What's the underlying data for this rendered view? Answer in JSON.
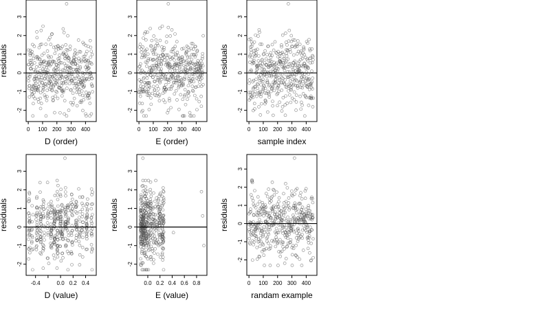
{
  "chart_data": [
    {
      "type": "scatter",
      "xlabel": "D (order)",
      "ylabel": "residuals",
      "xlim": [
        -15,
        475
      ],
      "ylim": [
        -2.6,
        3.9
      ],
      "xticks": [
        0,
        100,
        200,
        300,
        400
      ],
      "yticks": [
        -2,
        -1,
        0,
        1,
        2,
        3
      ],
      "hline": 0,
      "gen": {
        "kind": "index",
        "n": 450,
        "seed": 11,
        "outlier": [
          268,
          3.7
        ]
      },
      "points": []
    },
    {
      "type": "scatter",
      "xlabel": "E (order)",
      "ylabel": "residuals",
      "xlim": [
        -15,
        475
      ],
      "ylim": [
        -2.6,
        3.9
      ],
      "xticks": [
        0,
        100,
        200,
        300,
        400
      ],
      "yticks": [
        -2,
        -1,
        0,
        1,
        2,
        3
      ],
      "hline": 0,
      "gen": {
        "kind": "index",
        "n": 450,
        "seed": 23,
        "outlier": [
          205,
          3.7
        ]
      },
      "points": []
    },
    {
      "type": "scatter",
      "xlabel": "sample index",
      "ylabel": "residuals",
      "xlim": [
        -15,
        475
      ],
      "ylim": [
        -2.6,
        3.9
      ],
      "xticks": [
        0,
        100,
        200,
        300,
        400
      ],
      "yticks": [
        -2,
        -1,
        0,
        1,
        2,
        3
      ],
      "hline": 0,
      "gen": {
        "kind": "index",
        "n": 450,
        "seed": 37,
        "outlier": [
          275,
          3.7
        ]
      },
      "points": []
    },
    {
      "type": "scatter",
      "xlabel": "D (value)",
      "ylabel": "residuals",
      "xlim": [
        -0.55,
        0.57
      ],
      "ylim": [
        -2.6,
        3.9
      ],
      "xticks": [
        -0.4,
        -0.2,
        0.0,
        0.2,
        0.4
      ],
      "xticklabels": [
        "-0.4",
        "",
        "0.0",
        "0.2",
        "0.4"
      ],
      "yticks": [
        -2,
        -1,
        0,
        1,
        2,
        3
      ],
      "hline": 0,
      "gen": {
        "kind": "columns",
        "columns": [
          -0.5,
          -0.45,
          -0.38,
          -0.32,
          -0.27,
          -0.2,
          -0.15,
          -0.1,
          -0.05,
          0.0,
          0.03,
          0.08,
          0.12,
          0.18,
          0.25,
          0.3,
          0.35,
          0.42,
          0.5
        ],
        "jitter": 0.012,
        "n": 450,
        "seed": 51,
        "outlier": [
          0.07,
          3.7
        ]
      },
      "points": []
    },
    {
      "type": "scatter",
      "xlabel": "E (value)",
      "ylabel": "residuals",
      "xlim": [
        -0.18,
        0.97
      ],
      "ylim": [
        -2.6,
        3.9
      ],
      "xticks": [
        0.0,
        0.2,
        0.4,
        0.6,
        0.8
      ],
      "xticklabels": [
        "0.0",
        "0.2",
        "0.4",
        "0.6",
        "0.8"
      ],
      "yticks": [
        -2,
        -1,
        0,
        1,
        2,
        3
      ],
      "hline": 0,
      "gen": {
        "kind": "skewed",
        "n": 450,
        "seed": 67,
        "extra": [
          [
            -0.08,
            3.7
          ],
          [
            0.42,
            -0.3
          ],
          [
            0.88,
            1.9
          ],
          [
            0.9,
            0.6
          ],
          [
            0.92,
            -1.0
          ]
        ]
      },
      "points": []
    },
    {
      "type": "scatter",
      "xlabel": "randam example",
      "ylabel": "residuals",
      "xlim": [
        -15,
        475
      ],
      "ylim": [
        -2.85,
        3.8
      ],
      "xticks": [
        0,
        100,
        200,
        300,
        400
      ],
      "yticks": [
        -2,
        -1,
        0,
        1,
        2,
        3
      ],
      "hline": 0,
      "gen": {
        "kind": "index",
        "n": 450,
        "seed": 83,
        "outlier": [
          318,
          3.6
        ]
      },
      "points": []
    }
  ],
  "colors": {
    "points": "#555555",
    "axes": "#000000",
    "hline": "#000000"
  }
}
